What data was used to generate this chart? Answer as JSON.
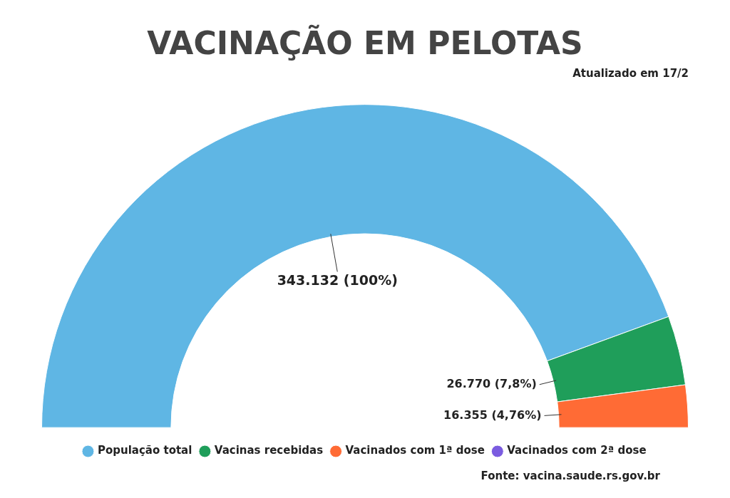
{
  "chart_data": {
    "type": "donut",
    "title": "VACINAÇÃO EM PELOTAS",
    "subtitle": "Atualizado em 17/2",
    "categories": [
      "População total",
      "Vacinas recebidas",
      "Vacinados com 1ª dose",
      "Vacinados com 2ª dose"
    ],
    "values": [
      343132,
      26770,
      16355,
      null
    ],
    "colors": [
      "#5fb6e4",
      "#1f9e5a",
      "#ff6b35",
      "#7b5ce0"
    ],
    "value_labels": [
      "343.132 (100%)",
      "26.770 (7,8%)",
      "16.355 (4,76%)",
      null
    ],
    "legend": "bottom",
    "annotations": [
      "Fonte: vacina.saude.rs.gov.br"
    ]
  }
}
